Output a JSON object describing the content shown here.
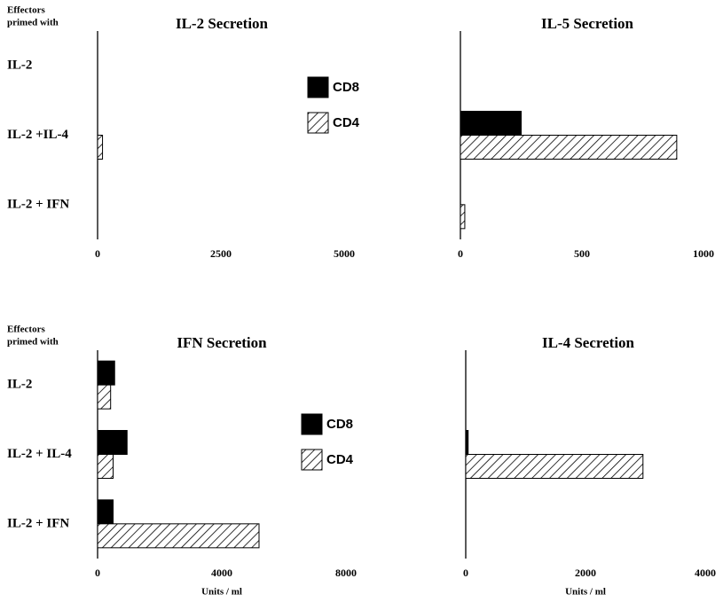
{
  "chart_data": [
    {
      "type": "barh",
      "title": "IL-2 Secretion",
      "ylabel": [
        "Effectors",
        "primed with"
      ],
      "categories": [
        "IL-2",
        "IL-2 +IL-4",
        "IL-2 + IFN"
      ],
      "series": [
        {
          "name": "CD8",
          "color": "#000000",
          "values": [
            0,
            0,
            0
          ]
        },
        {
          "name": "CD4",
          "color": "#000000",
          "pattern": "hatch",
          "values": [
            0,
            100,
            0
          ]
        }
      ],
      "xlim": [
        0,
        5000
      ],
      "xticks": [
        0,
        2500,
        5000
      ],
      "legend": true
    },
    {
      "type": "barh",
      "title": "IL-5 Secretion",
      "categories": [
        null,
        null,
        null
      ],
      "series": [
        {
          "color": "#000000",
          "values": [
            0,
            250,
            0
          ]
        },
        {
          "color": "#000000",
          "pattern": "hatch",
          "values": [
            0,
            890,
            18
          ]
        }
      ],
      "xlim": [
        0,
        1000
      ],
      "xticks": [
        0,
        500,
        1000
      ],
      "legend": false
    },
    {
      "type": "barh",
      "title": "IFN Secretion",
      "ylabel": [
        "Effectors",
        "primed with"
      ],
      "xlabel": "Units / ml",
      "categories": [
        "IL-2",
        "IL-2 + IL-4",
        "IL-2 + IFN"
      ],
      "series": [
        {
          "name": "CD8",
          "color": "#000000",
          "values": [
            550,
            950,
            500
          ]
        },
        {
          "name": "CD4",
          "color": "#000000",
          "pattern": "hatch",
          "values": [
            420,
            500,
            5200
          ]
        }
      ],
      "xlim": [
        0,
        8000
      ],
      "xticks": [
        0,
        4000,
        8000
      ],
      "legend": true
    },
    {
      "type": "barh",
      "title": "IL-4 Secretion",
      "xlabel": "Units / ml",
      "categories": [
        null,
        null,
        null
      ],
      "series": [
        {
          "color": "#000000",
          "values": [
            0,
            40,
            0
          ]
        },
        {
          "color": "#000000",
          "pattern": "hatch",
          "values": [
            0,
            2960,
            0
          ]
        }
      ],
      "xlim": [
        0,
        4000
      ],
      "xticks": [
        0,
        2000,
        4000
      ],
      "legend": false
    }
  ]
}
